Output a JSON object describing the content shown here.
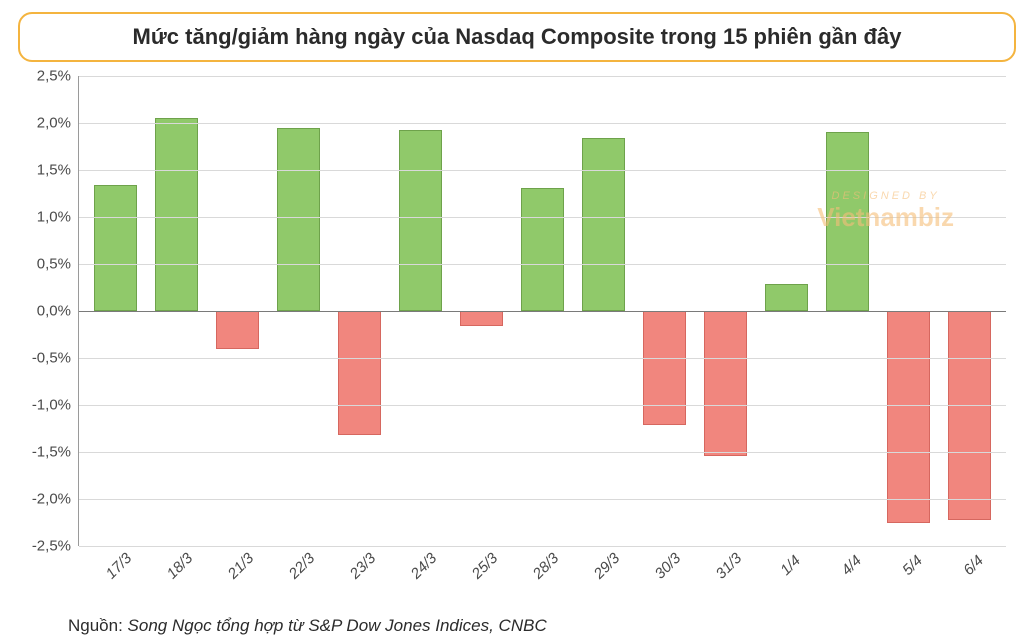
{
  "title": "Mức tăng/giảm hàng ngày của Nasdaq Composite trong 15 phiên gần đây",
  "source_prefix": "Nguồn: ",
  "source_text": "Song Ngọc tổng hợp từ S&P Dow Jones Indices, CNBC",
  "watermark_small": "DESIGNED  BY",
  "watermark_big": "Vietnambiz",
  "chart": {
    "type": "bar",
    "ylim_min": -2.5,
    "ylim_max": 2.5,
    "ytick_step": 0.5,
    "ytick_suffix": "%",
    "decimal_sep": ",",
    "categories": [
      "17/3",
      "18/3",
      "21/3",
      "22/3",
      "23/3",
      "24/3",
      "25/3",
      "28/3",
      "29/3",
      "30/3",
      "31/3",
      "1/4",
      "4/4",
      "5/4",
      "6/4"
    ],
    "values": [
      1.34,
      2.05,
      -0.4,
      1.95,
      -1.32,
      1.93,
      -0.16,
      1.31,
      1.84,
      -1.21,
      -1.54,
      0.29,
      1.9,
      -2.26,
      -2.22
    ],
    "positive_color": "#90c96a",
    "negative_color": "#f1867e",
    "positive_border": "#6ea24b",
    "negative_border": "#d6675f",
    "grid_color": "#d9d9d9",
    "axis_color": "#9a9a9a",
    "zero_line_color": "#7a7a7a",
    "background_color": "#ffffff",
    "title_font_size": 22,
    "title_color": "#2b2b2b",
    "title_border_color": "#f4b43f",
    "label_font_size": 15,
    "label_color": "#4a4a4a",
    "source_font_size": 17,
    "source_color": "#2b2b2b",
    "bar_width_pct": 72
  }
}
